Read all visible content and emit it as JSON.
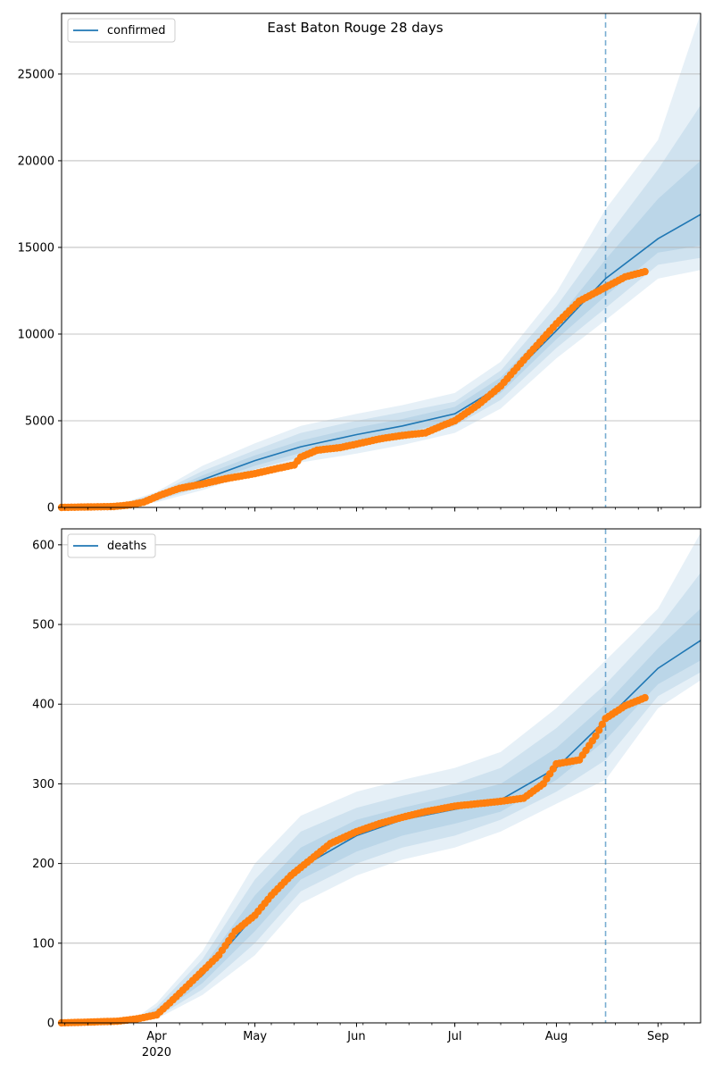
{
  "figure_title": "East Baton Rouge 28 days",
  "colors": {
    "model": "#1f77b4",
    "observed": "#ff7f0e",
    "band": "#1f77b4",
    "grid": "#b0b0b0",
    "cutoff": "#1f77b4"
  },
  "x_axis": {
    "range": [
      "2020-03-03",
      "2020-09-14"
    ],
    "tick_labels": [
      {
        "date": "2020-04-01",
        "label": "Apr",
        "sublabel": "2020"
      },
      {
        "date": "2020-05-01",
        "label": "May"
      },
      {
        "date": "2020-06-01",
        "label": "Jun"
      },
      {
        "date": "2020-07-01",
        "label": "Jul"
      },
      {
        "date": "2020-08-01",
        "label": "Aug"
      },
      {
        "date": "2020-09-01",
        "label": "Sep"
      }
    ],
    "forecast_start": "2020-08-16"
  },
  "chart_data": [
    {
      "type": "line",
      "title": "East Baton Rouge 28 days",
      "legend": "confirmed",
      "legend_position": "top-left",
      "grid": "y",
      "ylim": [
        0,
        28500
      ],
      "yticks": [
        0,
        5000,
        10000,
        15000,
        20000,
        25000
      ],
      "model": {
        "x": [
          "2020-03-03",
          "2020-03-20",
          "2020-04-01",
          "2020-04-15",
          "2020-05-01",
          "2020-05-15",
          "2020-06-01",
          "2020-06-15",
          "2020-07-01",
          "2020-07-15",
          "2020-08-01",
          "2020-08-16",
          "2020-09-01",
          "2020-09-14"
        ],
        "y": [
          0,
          100,
          600,
          1600,
          2700,
          3500,
          4200,
          4700,
          5400,
          7000,
          10200,
          13200,
          15500,
          16900
        ]
      },
      "bands": [
        {
          "level": "outer",
          "lower": [
            0,
            80,
            300,
            1000,
            2000,
            2600,
            3100,
            3600,
            4300,
            5700,
            8600,
            10800,
            13200,
            13700
          ],
          "upper": [
            0,
            150,
            900,
            2400,
            3700,
            4700,
            5400,
            5900,
            6600,
            8400,
            12400,
            17200,
            21200,
            28500
          ]
        },
        {
          "level": "mid",
          "lower": [
            0,
            85,
            380,
            1200,
            2200,
            2900,
            3500,
            4000,
            4700,
            6200,
            9200,
            11500,
            14000,
            14400
          ],
          "upper": [
            0,
            130,
            800,
            2100,
            3300,
            4300,
            5000,
            5500,
            6100,
            7900,
            11600,
            15500,
            19500,
            23200
          ]
        },
        {
          "level": "inner",
          "lower": [
            0,
            90,
            450,
            1350,
            2400,
            3150,
            3800,
            4300,
            5000,
            6600,
            9700,
            12200,
            14700,
            15100
          ],
          "upper": [
            0,
            115,
            700,
            1850,
            3000,
            3850,
            4600,
            5100,
            5800,
            7500,
            10800,
            14300,
            17800,
            20000
          ]
        }
      ],
      "observed": {
        "x": [
          "2020-03-03",
          "2020-03-19",
          "2020-03-24",
          "2020-03-28",
          "2020-04-02",
          "2020-04-08",
          "2020-04-15",
          "2020-04-22",
          "2020-05-01",
          "2020-05-08",
          "2020-05-13",
          "2020-05-15",
          "2020-05-20",
          "2020-05-27",
          "2020-06-01",
          "2020-06-08",
          "2020-06-15",
          "2020-06-22",
          "2020-06-27",
          "2020-07-01",
          "2020-07-08",
          "2020-07-15",
          "2020-07-22",
          "2020-08-01",
          "2020-08-08",
          "2020-08-16",
          "2020-08-22",
          "2020-08-28"
        ],
        "y": [
          0,
          50,
          150,
          300,
          700,
          1100,
          1350,
          1650,
          1950,
          2250,
          2450,
          2900,
          3300,
          3450,
          3650,
          3950,
          4150,
          4300,
          4700,
          5000,
          5900,
          7000,
          8500,
          10600,
          11900,
          12700,
          13300,
          13600
        ]
      }
    },
    {
      "type": "line",
      "legend": "deaths",
      "legend_position": "top-left",
      "grid": "y",
      "ylim": [
        0,
        620
      ],
      "yticks": [
        0,
        100,
        200,
        300,
        400,
        500,
        600
      ],
      "model": {
        "x": [
          "2020-03-03",
          "2020-03-25",
          "2020-04-01",
          "2020-04-15",
          "2020-05-01",
          "2020-05-15",
          "2020-06-01",
          "2020-06-15",
          "2020-07-01",
          "2020-07-15",
          "2020-08-01",
          "2020-08-16",
          "2020-09-01",
          "2020-09-14"
        ],
        "y": [
          0,
          2,
          12,
          60,
          135,
          195,
          235,
          255,
          268,
          280,
          320,
          380,
          445,
          480
        ]
      },
      "bands": [
        {
          "level": "outer",
          "lower": [
            0,
            0,
            5,
            35,
            85,
            150,
            185,
            205,
            220,
            240,
            275,
            305,
            395,
            430
          ],
          "upper": [
            0,
            4,
            25,
            90,
            200,
            260,
            290,
            305,
            320,
            340,
            395,
            455,
            520,
            615
          ]
        },
        {
          "level": "mid",
          "lower": [
            0,
            0,
            7,
            42,
            100,
            165,
            200,
            220,
            235,
            255,
            290,
            330,
            410,
            440
          ],
          "upper": [
            0,
            3,
            20,
            80,
            180,
            240,
            270,
            285,
            300,
            320,
            370,
            425,
            495,
            565
          ]
        },
        {
          "level": "inner",
          "lower": [
            0,
            1,
            9,
            50,
            115,
            180,
            215,
            235,
            250,
            265,
            305,
            355,
            425,
            455
          ],
          "upper": [
            0,
            3,
            16,
            70,
            160,
            220,
            255,
            270,
            285,
            300,
            345,
            400,
            470,
            520
          ]
        }
      ],
      "observed": {
        "x": [
          "2020-03-03",
          "2020-03-20",
          "2020-03-26",
          "2020-04-01",
          "2020-04-05",
          "2020-04-10",
          "2020-04-15",
          "2020-04-20",
          "2020-04-25",
          "2020-05-01",
          "2020-05-06",
          "2020-05-12",
          "2020-05-18",
          "2020-05-24",
          "2020-06-01",
          "2020-06-08",
          "2020-06-15",
          "2020-06-22",
          "2020-07-01",
          "2020-07-08",
          "2020-07-15",
          "2020-07-22",
          "2020-07-28",
          "2020-08-01",
          "2020-08-08",
          "2020-08-13",
          "2020-08-16",
          "2020-08-22",
          "2020-08-28"
        ],
        "y": [
          0,
          2,
          5,
          10,
          25,
          45,
          65,
          85,
          115,
          135,
          160,
          185,
          205,
          225,
          240,
          250,
          258,
          265,
          272,
          275,
          278,
          282,
          300,
          325,
          330,
          360,
          382,
          398,
          408
        ]
      }
    }
  ]
}
